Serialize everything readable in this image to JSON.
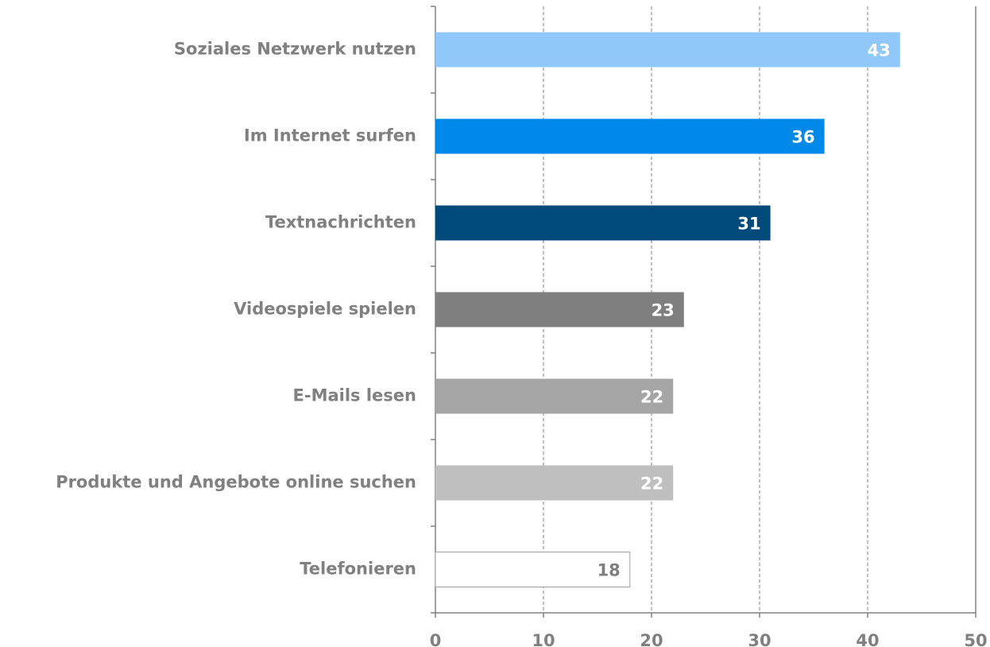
{
  "chart_data": {
    "type": "bar",
    "orientation": "horizontal",
    "categories": [
      "Soziales Netzwerk nutzen",
      "Im Internet surfen",
      "Textnachrichten",
      "Videospiele spielen",
      "E-Mails lesen",
      "Produkte und Angebote online suchen",
      "Telefonieren"
    ],
    "values": [
      43,
      36,
      31,
      23,
      22,
      22,
      18
    ],
    "colors": [
      "#90c8fc",
      "#0089e8",
      "#004a7c",
      "#7f7f7f",
      "#a5a5a5",
      "#bfbfbf",
      "#ffffff"
    ],
    "value_label_colors": [
      "#ffffff",
      "#ffffff",
      "#ffffff",
      "#ffffff",
      "#ffffff",
      "#ffffff",
      "#7f7f7f"
    ],
    "xlim": [
      0,
      50
    ],
    "xticks": [
      0,
      10,
      20,
      30,
      40,
      50
    ],
    "grid": true
  }
}
